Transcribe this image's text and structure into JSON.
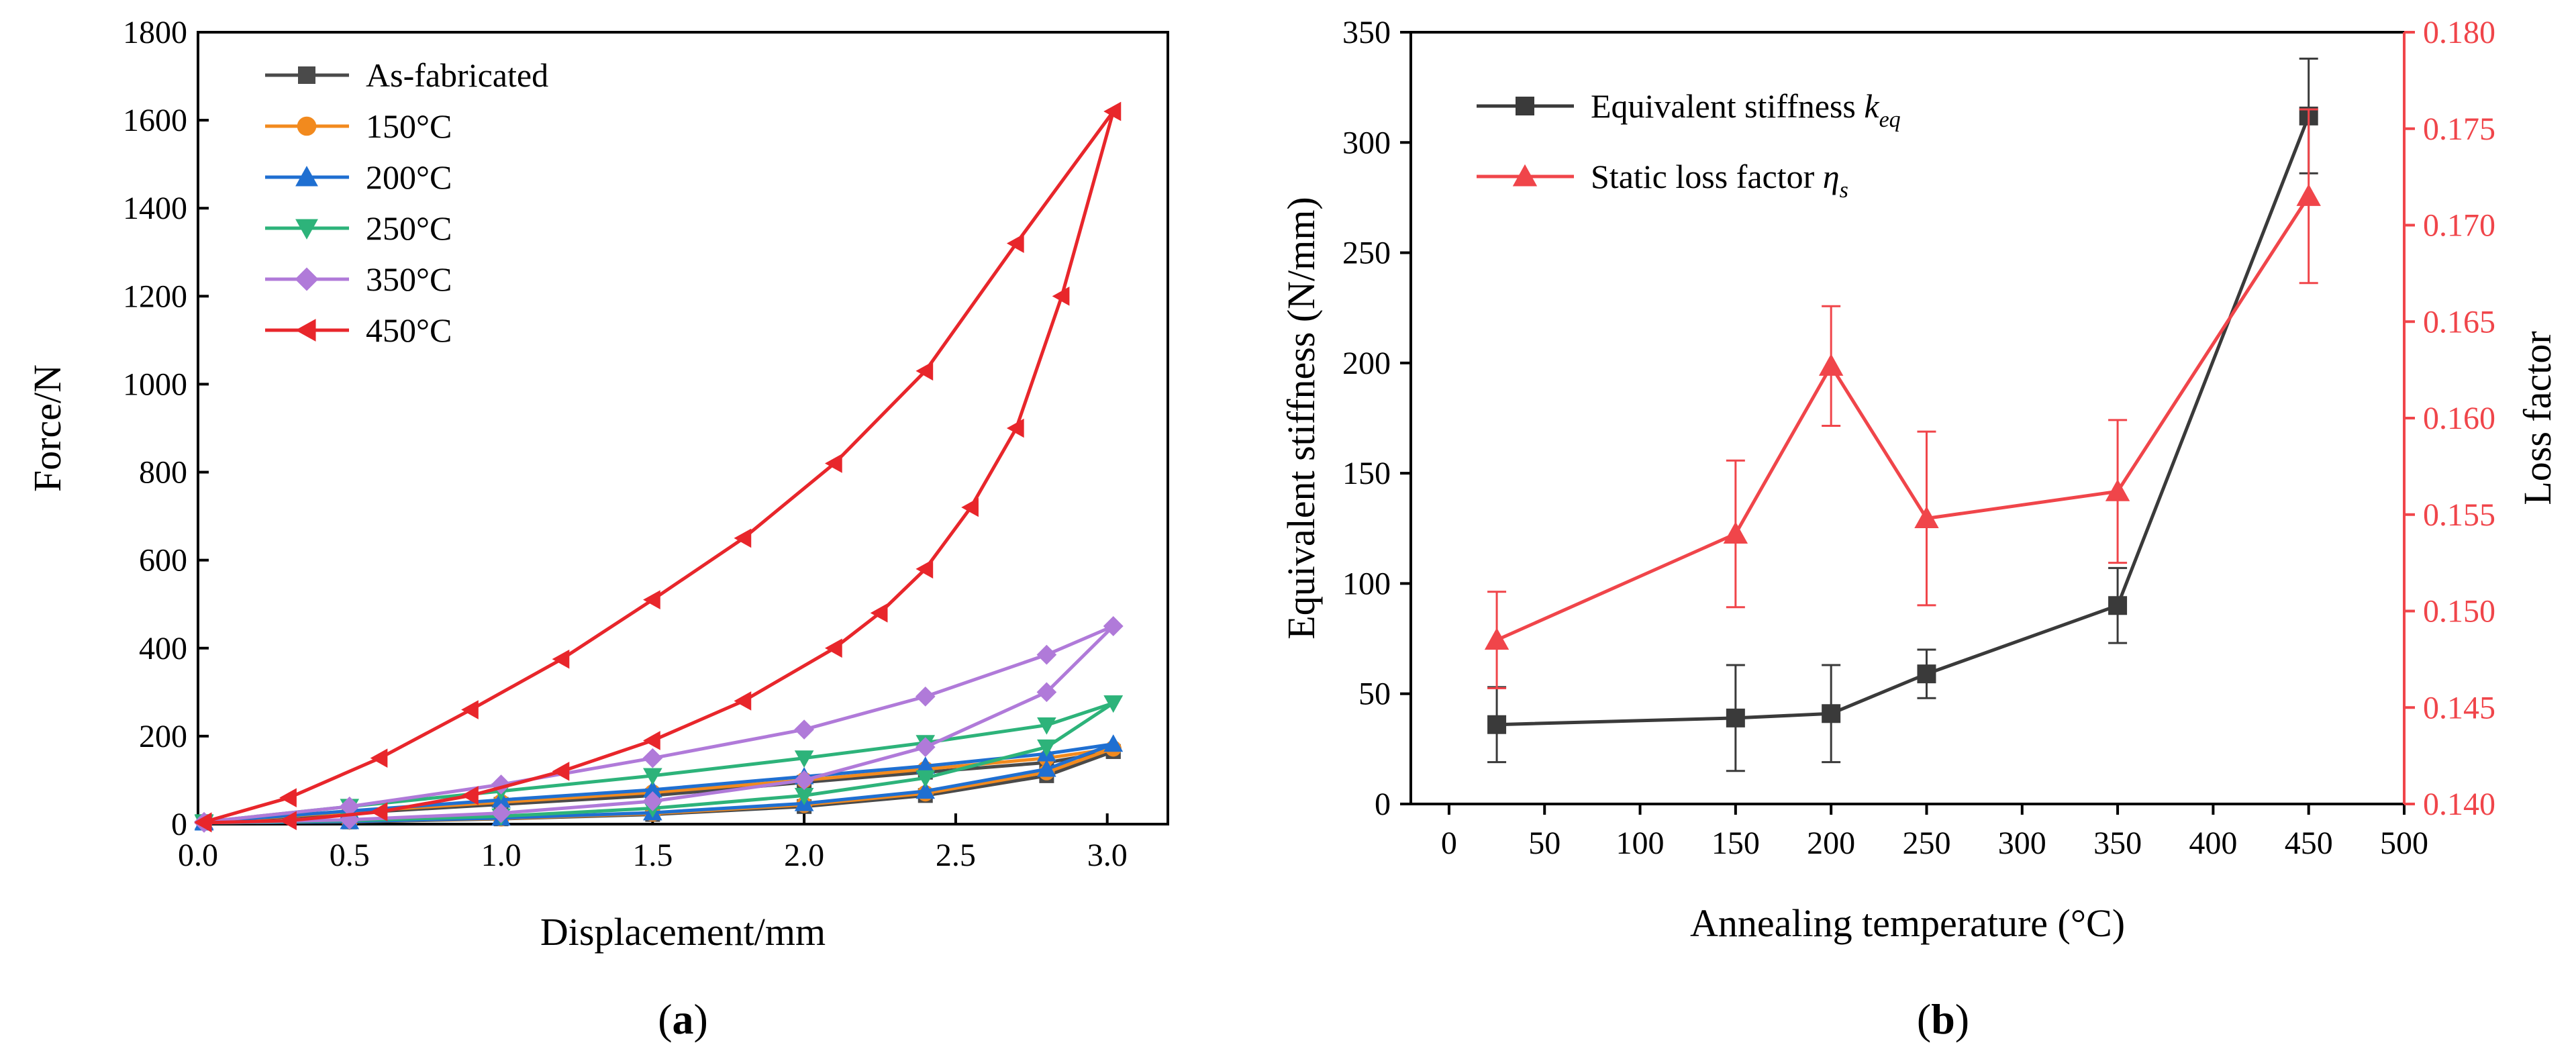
{
  "chart_data": [
    {
      "id": "a",
      "type": "line",
      "panel_label": "a",
      "xlabel": "Displacement/mm",
      "ylabel": "Force/N",
      "xlim": [
        0,
        3.2
      ],
      "ylim": [
        0,
        1800
      ],
      "xticks": [
        0.0,
        0.5,
        1.0,
        1.5,
        2.0,
        2.5,
        3.0
      ],
      "yticks": [
        0,
        200,
        400,
        600,
        800,
        1000,
        1200,
        1400,
        1600,
        1800
      ],
      "xtick_labels": [
        "0.0",
        "0.5",
        "1.0",
        "1.5",
        "2.0",
        "2.5",
        "3.0"
      ],
      "ytick_labels": [
        "0",
        "200",
        "400",
        "600",
        "800",
        "1000",
        "1200",
        "1400",
        "1600",
        "1800"
      ],
      "legend_position": "top-left",
      "series": [
        {
          "name": "As-fabricated",
          "color": "#4a4a4a",
          "marker": "square",
          "loading": {
            "x": [
              0.02,
              0.5,
              1.0,
              1.5,
              2.0,
              2.4,
              2.8,
              3.02
            ],
            "y": [
              5,
              25,
              45,
              65,
              95,
              118,
              140,
              165
            ]
          },
          "unloading": {
            "x": [
              3.02,
              2.8,
              2.4,
              2.0,
              1.5,
              1.0,
              0.5,
              0.02
            ],
            "y": [
              165,
              110,
              65,
              40,
              22,
              12,
              5,
              3
            ]
          }
        },
        {
          "name": "150°C",
          "color": "#f28a1e",
          "marker": "circle",
          "loading": {
            "x": [
              0.02,
              0.5,
              1.0,
              1.5,
              2.0,
              2.4,
              2.8,
              3.02
            ],
            "y": [
              5,
              28,
              50,
              72,
              100,
              125,
              150,
              172
            ]
          },
          "unloading": {
            "x": [
              3.02,
              2.8,
              2.4,
              2.0,
              1.5,
              1.0,
              0.5,
              0.02
            ],
            "y": [
              172,
              118,
              70,
              44,
              24,
              13,
              6,
              3
            ]
          }
        },
        {
          "name": "200°C",
          "color": "#1f6fd1",
          "marker": "triangle-up",
          "loading": {
            "x": [
              0.02,
              0.5,
              1.0,
              1.5,
              2.0,
              2.4,
              2.8,
              3.02
            ],
            "y": [
              5,
              30,
              55,
              78,
              108,
              132,
              160,
              182
            ]
          },
          "unloading": {
            "x": [
              3.02,
              2.8,
              2.4,
              2.0,
              1.5,
              1.0,
              0.5,
              0.02
            ],
            "y": [
              182,
              125,
              75,
              47,
              26,
              14,
              6,
              3
            ]
          }
        },
        {
          "name": "250°C",
          "color": "#2db37a",
          "marker": "triangle-down",
          "loading": {
            "x": [
              0.02,
              0.5,
              1.0,
              1.5,
              2.0,
              2.4,
              2.8,
              3.02
            ],
            "y": [
              5,
              40,
              75,
              110,
              150,
              185,
              225,
              275
            ]
          },
          "unloading": {
            "x": [
              3.02,
              2.8,
              2.4,
              2.0,
              1.5,
              1.0,
              0.5,
              0.02
            ],
            "y": [
              275,
              175,
              105,
              65,
              36,
              18,
              8,
              3
            ]
          }
        },
        {
          "name": "350°C",
          "color": "#b07ad9",
          "marker": "diamond",
          "loading": {
            "x": [
              0.02,
              0.5,
              1.0,
              1.5,
              2.0,
              2.4,
              2.8,
              3.02
            ],
            "y": [
              5,
              40,
              90,
              150,
              215,
              290,
              385,
              450
            ]
          },
          "unloading": {
            "x": [
              3.02,
              2.8,
              2.4,
              2.0,
              1.5,
              1.0,
              0.5,
              0.02
            ],
            "y": [
              450,
              300,
              175,
              100,
              52,
              25,
              10,
              3
            ]
          }
        },
        {
          "name": "450°C",
          "color": "#e8262b",
          "marker": "triangle-left",
          "loading": {
            "x": [
              0.02,
              0.3,
              0.6,
              0.9,
              1.2,
              1.5,
              1.8,
              2.1,
              2.4,
              2.7,
              3.02
            ],
            "y": [
              5,
              60,
              150,
              260,
              375,
              510,
              650,
              820,
              1030,
              1320,
              1620
            ]
          },
          "unloading": {
            "x": [
              3.02,
              2.85,
              2.7,
              2.55,
              2.4,
              2.25,
              2.1,
              1.8,
              1.5,
              1.2,
              0.9,
              0.6,
              0.3,
              0.02
            ],
            "y": [
              1620,
              1200,
              900,
              720,
              580,
              480,
              400,
              280,
              190,
              120,
              65,
              28,
              8,
              3
            ]
          }
        }
      ]
    },
    {
      "id": "b",
      "type": "line",
      "panel_label": "b",
      "xlabel": "Annealing temperature (°C)",
      "ylabel_left": "Equivalent stiffness (N/mm)",
      "ylabel_right": "Loss factor",
      "xlim": [
        -20,
        500
      ],
      "ylim_left": [
        0,
        350
      ],
      "ylim_right": [
        0.14,
        0.18
      ],
      "xticks": [
        0,
        50,
        100,
        150,
        200,
        250,
        300,
        350,
        400,
        450,
        500
      ],
      "yticks_left": [
        0,
        50,
        100,
        150,
        200,
        250,
        300,
        350
      ],
      "yticks_right": [
        0.14,
        0.145,
        0.15,
        0.155,
        0.16,
        0.165,
        0.17,
        0.175,
        0.18
      ],
      "xtick_labels": [
        "0",
        "50",
        "100",
        "150",
        "200",
        "250",
        "300",
        "350",
        "400",
        "450",
        "500"
      ],
      "ytick_labels_left": [
        "0",
        "50",
        "100",
        "150",
        "200",
        "250",
        "300",
        "350"
      ],
      "ytick_labels_right": [
        "0.140",
        "0.145",
        "0.150",
        "0.155",
        "0.160",
        "0.165",
        "0.170",
        "0.175",
        "0.180"
      ],
      "legend_position": "top-left",
      "series": [
        {
          "name": "Equivalent stiffness k",
          "subscript": "eq",
          "axis": "left",
          "color": "#3a3a3a",
          "marker": "square",
          "x": [
            25,
            150,
            200,
            250,
            350,
            450
          ],
          "y": [
            36,
            39,
            41,
            59,
            90,
            312
          ],
          "err": [
            17,
            24,
            22,
            11,
            17,
            26
          ]
        },
        {
          "name": "Static loss factor η",
          "subscript": "s",
          "axis": "right",
          "color": "#f0454a",
          "marker": "triangle-up",
          "x": [
            25,
            150,
            200,
            250,
            350,
            450
          ],
          "y": [
            0.1485,
            0.154,
            0.1627,
            0.1548,
            0.1562,
            0.1715
          ],
          "err": [
            0.0025,
            0.0038,
            0.0031,
            0.0045,
            0.0037,
            0.0045
          ]
        }
      ]
    }
  ]
}
